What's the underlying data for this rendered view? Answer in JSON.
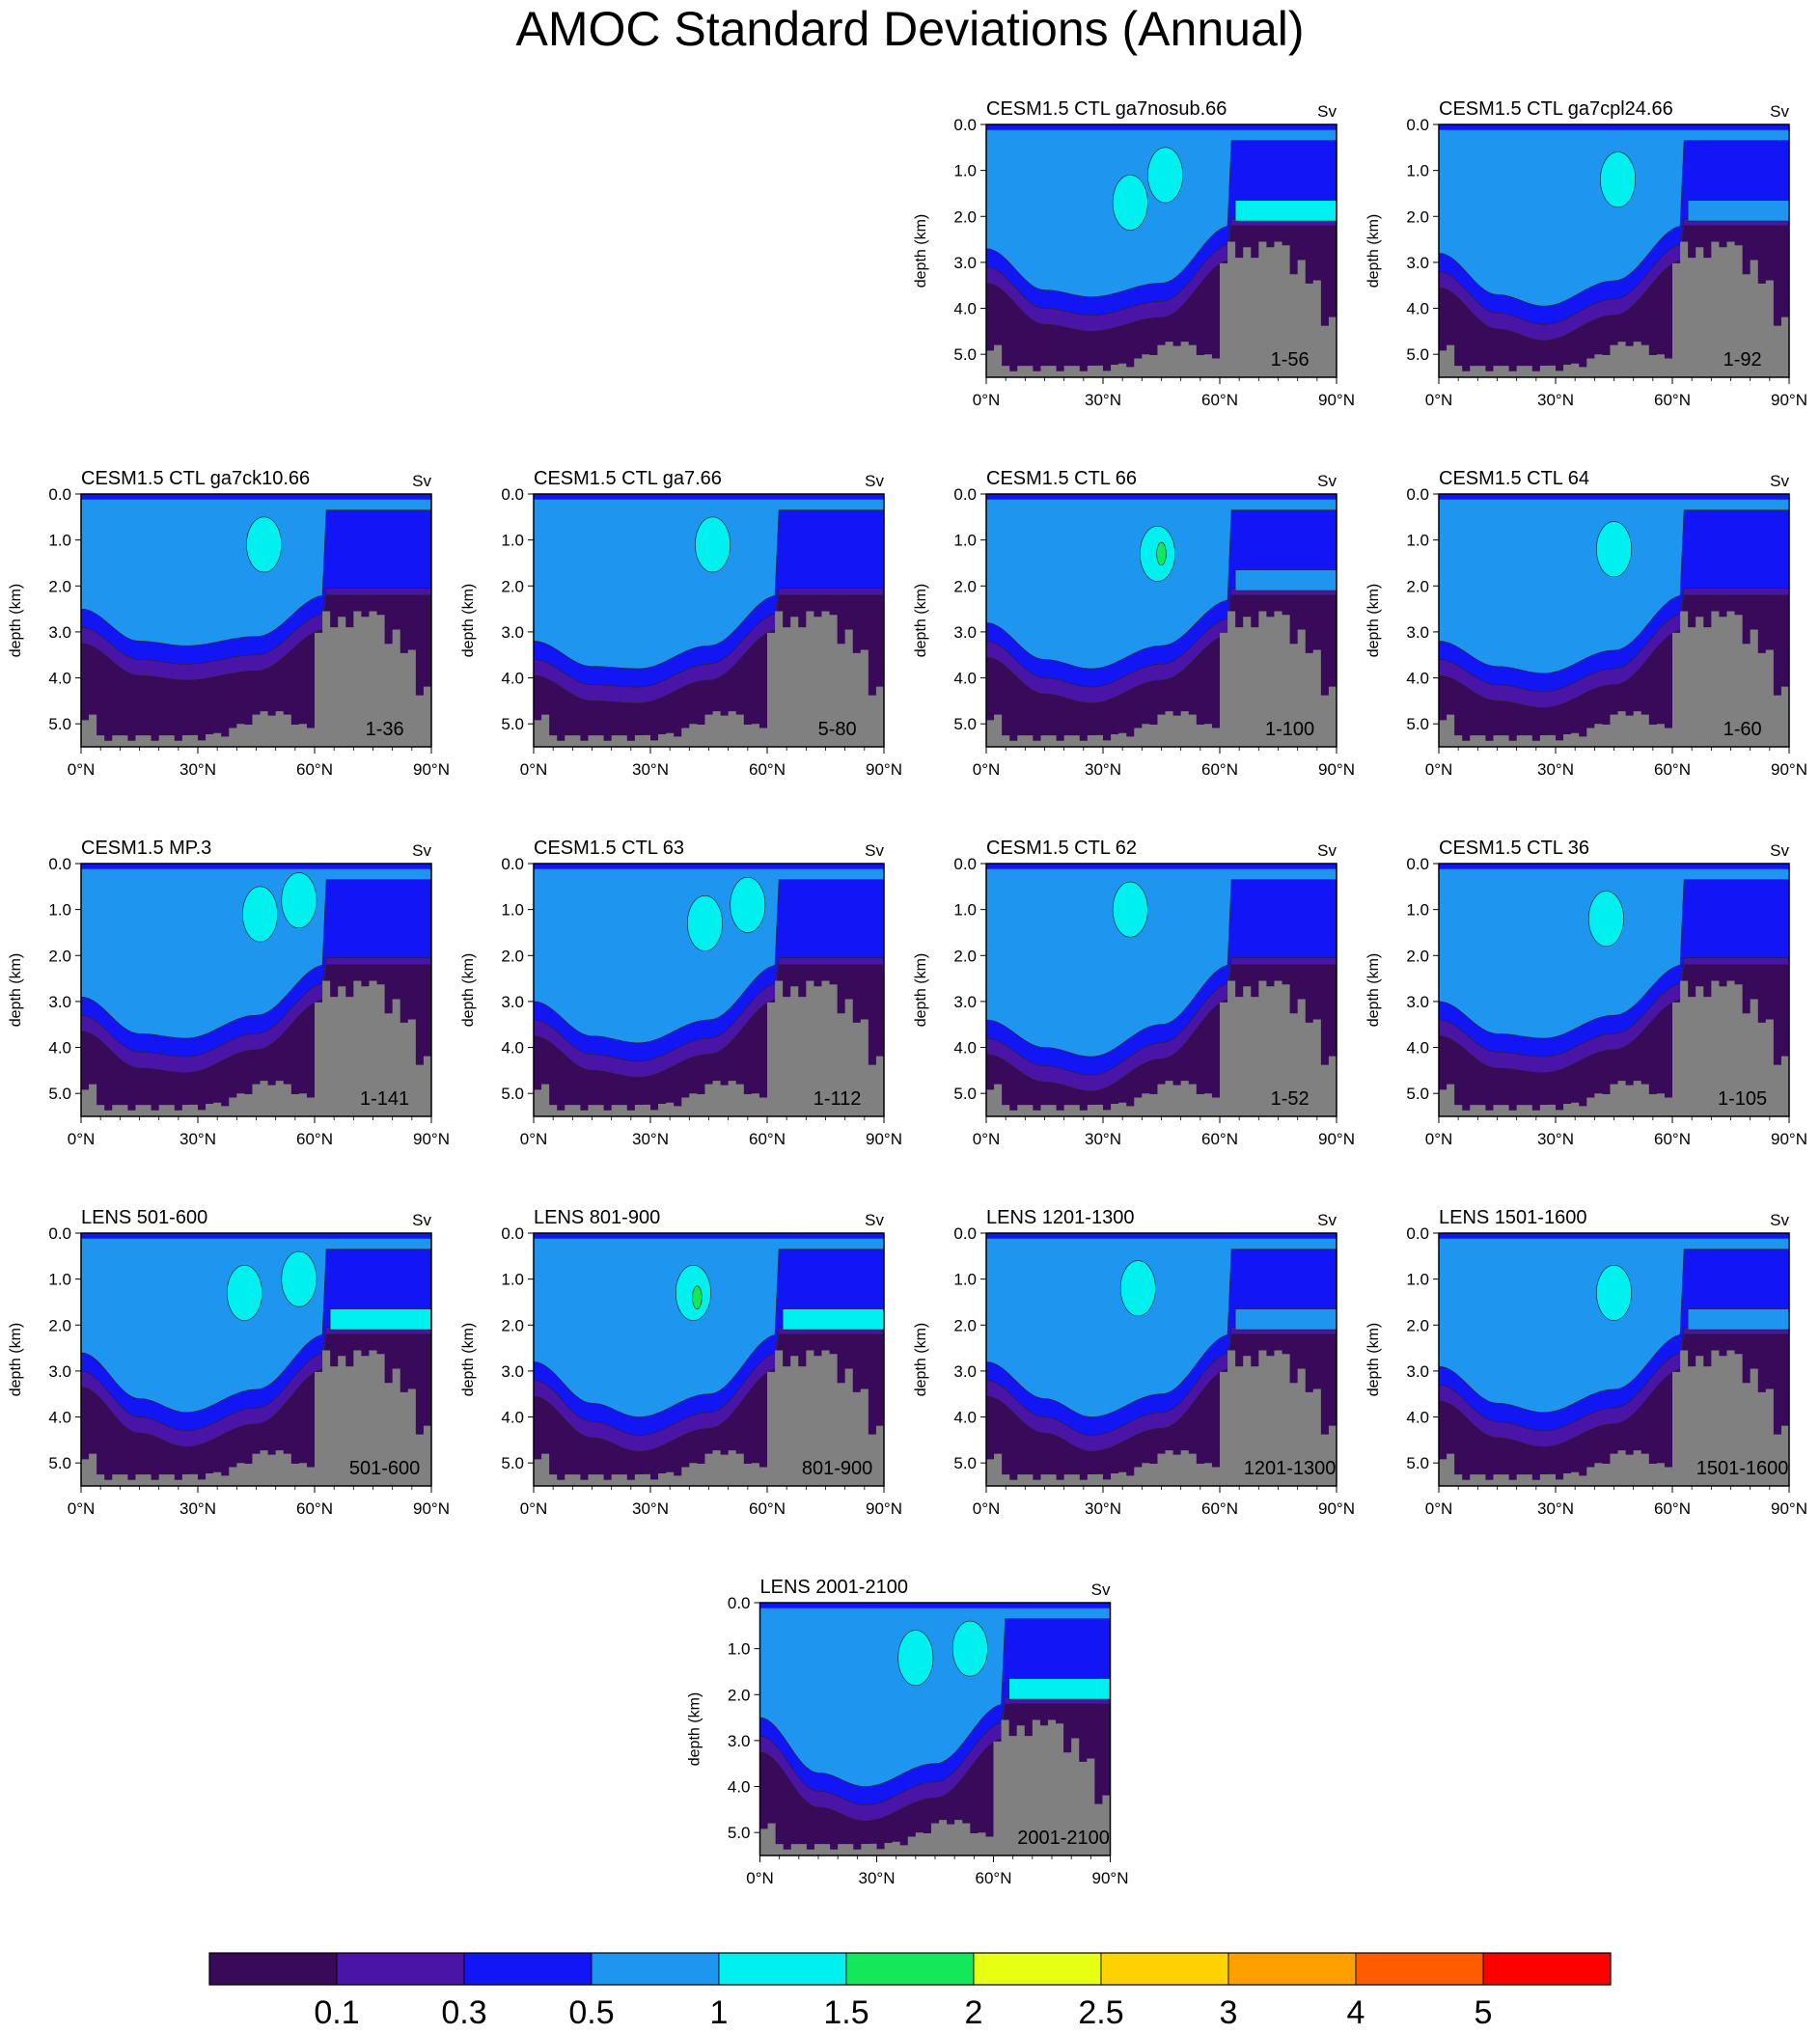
{
  "title": "AMOC Standard Deviations (Annual)",
  "units_label": "Sv",
  "colors": {
    "levels": [
      "#3a0a5a",
      "#4a14a6",
      "#1216f5",
      "#1e96f0",
      "#00f0f0",
      "#12e85a",
      "#e6ff12",
      "#ffd200",
      "#ffa000",
      "#ff5c00",
      "#ff0000"
    ],
    "land": "#808080"
  },
  "chart_data": {
    "type": "heatmap",
    "layout": "small multiples, 5 rows",
    "x_axis": {
      "ticks": [
        "0°N",
        "30°N",
        "60°N",
        "90°N"
      ],
      "range": [
        0,
        90
      ]
    },
    "y_axis": {
      "label": "depth (km)",
      "ticks": [
        "0.0",
        "1.0",
        "2.0",
        "3.0",
        "4.0",
        "5.0"
      ],
      "range": [
        0,
        5.5
      ]
    },
    "colorbar": {
      "levels": [
        "0.1",
        "0.3",
        "0.5",
        "1",
        "1.5",
        "2",
        "2.5",
        "3",
        "4",
        "5"
      ]
    },
    "panels": [
      {
        "title": "CESM1.5 CTL ga7nosub.66",
        "years": "1-56",
        "row": 0,
        "col": 2,
        "profile": [
          2.7,
          3.6,
          3.75,
          3.45,
          2.2
        ],
        "cores": [
          [
            46,
            1.1,
            1.5
          ],
          [
            37,
            1.7,
            1.0
          ]
        ],
        "arctic_band": 1.5
      },
      {
        "title": "CESM1.5 CTL ga7cpl24.66",
        "years": "1-92",
        "row": 0,
        "col": 3,
        "profile": [
          2.8,
          3.7,
          3.95,
          3.4,
          2.2
        ],
        "cores": [
          [
            46,
            1.2,
            1.5
          ]
        ],
        "arctic_band": 1.0
      },
      {
        "title": "CESM1.5 CTL ga7ck10.66",
        "years": "1-36",
        "row": 1,
        "col": 0,
        "profile": [
          2.5,
          3.2,
          3.3,
          3.1,
          2.2
        ],
        "cores": [
          [
            47,
            1.1,
            1.5
          ]
        ],
        "arctic_band": 0
      },
      {
        "title": "CESM1.5 CTL ga7.66",
        "years": "5-80",
        "row": 1,
        "col": 1,
        "profile": [
          3.2,
          3.75,
          3.8,
          3.3,
          2.2
        ],
        "cores": [
          [
            46,
            1.1,
            1.5
          ]
        ],
        "arctic_band": 0
      },
      {
        "title": "CESM1.5 CTL 66",
        "years": "1-100",
        "row": 1,
        "col": 2,
        "profile": [
          2.8,
          3.6,
          3.8,
          3.3,
          2.3
        ],
        "cores": [
          [
            44,
            1.3,
            1.5
          ],
          [
            45,
            1.3,
            2.0
          ]
        ],
        "arctic_band": 1.0
      },
      {
        "title": "CESM1.5 CTL 64",
        "years": "1-60",
        "row": 1,
        "col": 3,
        "profile": [
          3.2,
          3.75,
          3.9,
          3.4,
          2.2
        ],
        "cores": [
          [
            45,
            1.2,
            1.5
          ]
        ],
        "arctic_band": 0
      },
      {
        "title": "CESM1.5 MP.3",
        "years": "1-141",
        "row": 2,
        "col": 0,
        "profile": [
          2.9,
          3.7,
          3.8,
          3.3,
          2.2
        ],
        "cores": [
          [
            46,
            1.1,
            1.5
          ],
          [
            56,
            0.8,
            1.5
          ]
        ],
        "arctic_band": 0
      },
      {
        "title": "CESM1.5 CTL 63",
        "years": "1-112",
        "row": 2,
        "col": 1,
        "profile": [
          3.0,
          3.75,
          3.9,
          3.4,
          2.2
        ],
        "cores": [
          [
            44,
            1.3,
            1.5
          ],
          [
            55,
            0.9,
            1.5
          ]
        ],
        "arctic_band": 0
      },
      {
        "title": "CESM1.5 CTL 62",
        "years": "1-52",
        "row": 2,
        "col": 2,
        "profile": [
          3.4,
          4.0,
          4.2,
          3.5,
          2.2
        ],
        "cores": [
          [
            37,
            1.0,
            1.5
          ]
        ],
        "arctic_band": 0
      },
      {
        "title": "CESM1.5 CTL 36",
        "years": "1-105",
        "row": 2,
        "col": 3,
        "profile": [
          3.0,
          3.7,
          3.8,
          3.3,
          2.2
        ],
        "cores": [
          [
            43,
            1.2,
            1.5
          ]
        ],
        "arctic_band": 0
      },
      {
        "title": "LENS 501-600",
        "years": "501-600",
        "row": 3,
        "col": 0,
        "profile": [
          2.6,
          3.6,
          3.9,
          3.4,
          2.2
        ],
        "cores": [
          [
            42,
            1.3,
            1.5
          ],
          [
            56,
            1.0,
            1.5
          ]
        ],
        "arctic_band": 1.5
      },
      {
        "title": "LENS 801-900",
        "years": "801-900",
        "row": 3,
        "col": 1,
        "profile": [
          2.8,
          3.7,
          4.0,
          3.5,
          2.2
        ],
        "cores": [
          [
            41,
            1.3,
            1.5
          ],
          [
            42,
            1.4,
            2.0
          ]
        ],
        "arctic_band": 1.5
      },
      {
        "title": "LENS 1201-1300",
        "years": "1201-1300",
        "row": 3,
        "col": 2,
        "profile": [
          2.8,
          3.6,
          4.0,
          3.5,
          2.2
        ],
        "cores": [
          [
            39,
            1.2,
            1.5
          ]
        ],
        "arctic_band": 1.0
      },
      {
        "title": "LENS 1501-1600",
        "years": "1501-1600",
        "row": 3,
        "col": 3,
        "profile": [
          2.9,
          3.7,
          3.9,
          3.4,
          2.2
        ],
        "cores": [
          [
            45,
            1.3,
            1.5
          ]
        ],
        "arctic_band": 1.0
      },
      {
        "title": "LENS 2001-2100",
        "years": "2001-2100",
        "row": 4,
        "col": 1.5,
        "profile": [
          2.5,
          3.7,
          4.0,
          3.5,
          2.2
        ],
        "cores": [
          [
            40,
            1.2,
            1.5
          ],
          [
            54,
            1.0,
            1.5
          ]
        ],
        "arctic_band": 1.5
      }
    ]
  }
}
